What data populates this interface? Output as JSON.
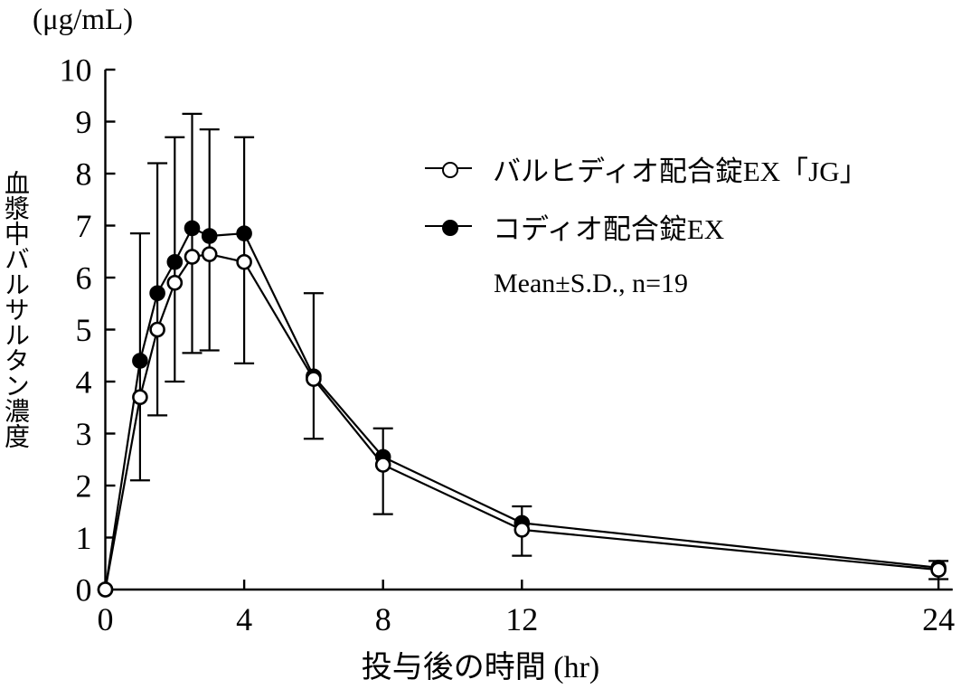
{
  "colors": {
    "foreground": "#000000",
    "background": "#ffffff"
  },
  "chart_data": {
    "type": "line",
    "title": "",
    "unit_label": "(μg/mL)",
    "ylabel": "血漿中バルサルタン濃度",
    "xlabel": "投与後の時間 (hr)",
    "annotation": "Mean±S.D., n=19",
    "xlim": [
      0,
      24.2
    ],
    "ylim": [
      0,
      10
    ],
    "x_ticks": [
      0,
      4,
      8,
      12,
      24
    ],
    "y_ticks": [
      0,
      1,
      2,
      3,
      4,
      5,
      6,
      7,
      8,
      9,
      10
    ],
    "grid": false,
    "legend_position": "upper-right-inside",
    "x": [
      0,
      1,
      1.5,
      2,
      2.5,
      3,
      4,
      6,
      8,
      12,
      24
    ],
    "series": [
      {
        "name": "バルヒディオ配合錠EX「JG」",
        "marker": "open-circle",
        "color": "#000000",
        "values": [
          0,
          3.7,
          5.0,
          5.9,
          6.4,
          6.45,
          6.3,
          4.05,
          2.4,
          1.15,
          0.38
        ]
      },
      {
        "name": "コディオ配合錠EX",
        "marker": "filled-circle",
        "color": "#000000",
        "values": [
          0,
          4.4,
          5.7,
          6.3,
          6.95,
          6.8,
          6.85,
          4.1,
          2.55,
          1.28,
          0.42
        ]
      }
    ],
    "error_bars": {
      "x": [
        1,
        1.5,
        2,
        2.5,
        3,
        4,
        6,
        8,
        12,
        24
      ],
      "upper": [
        6.85,
        8.2,
        8.7,
        9.15,
        8.85,
        8.7,
        5.7,
        3.1,
        1.6,
        0.55
      ],
      "lower": [
        2.1,
        3.35,
        4.0,
        4.55,
        4.6,
        4.35,
        2.9,
        1.45,
        0.65,
        0.2
      ]
    }
  }
}
